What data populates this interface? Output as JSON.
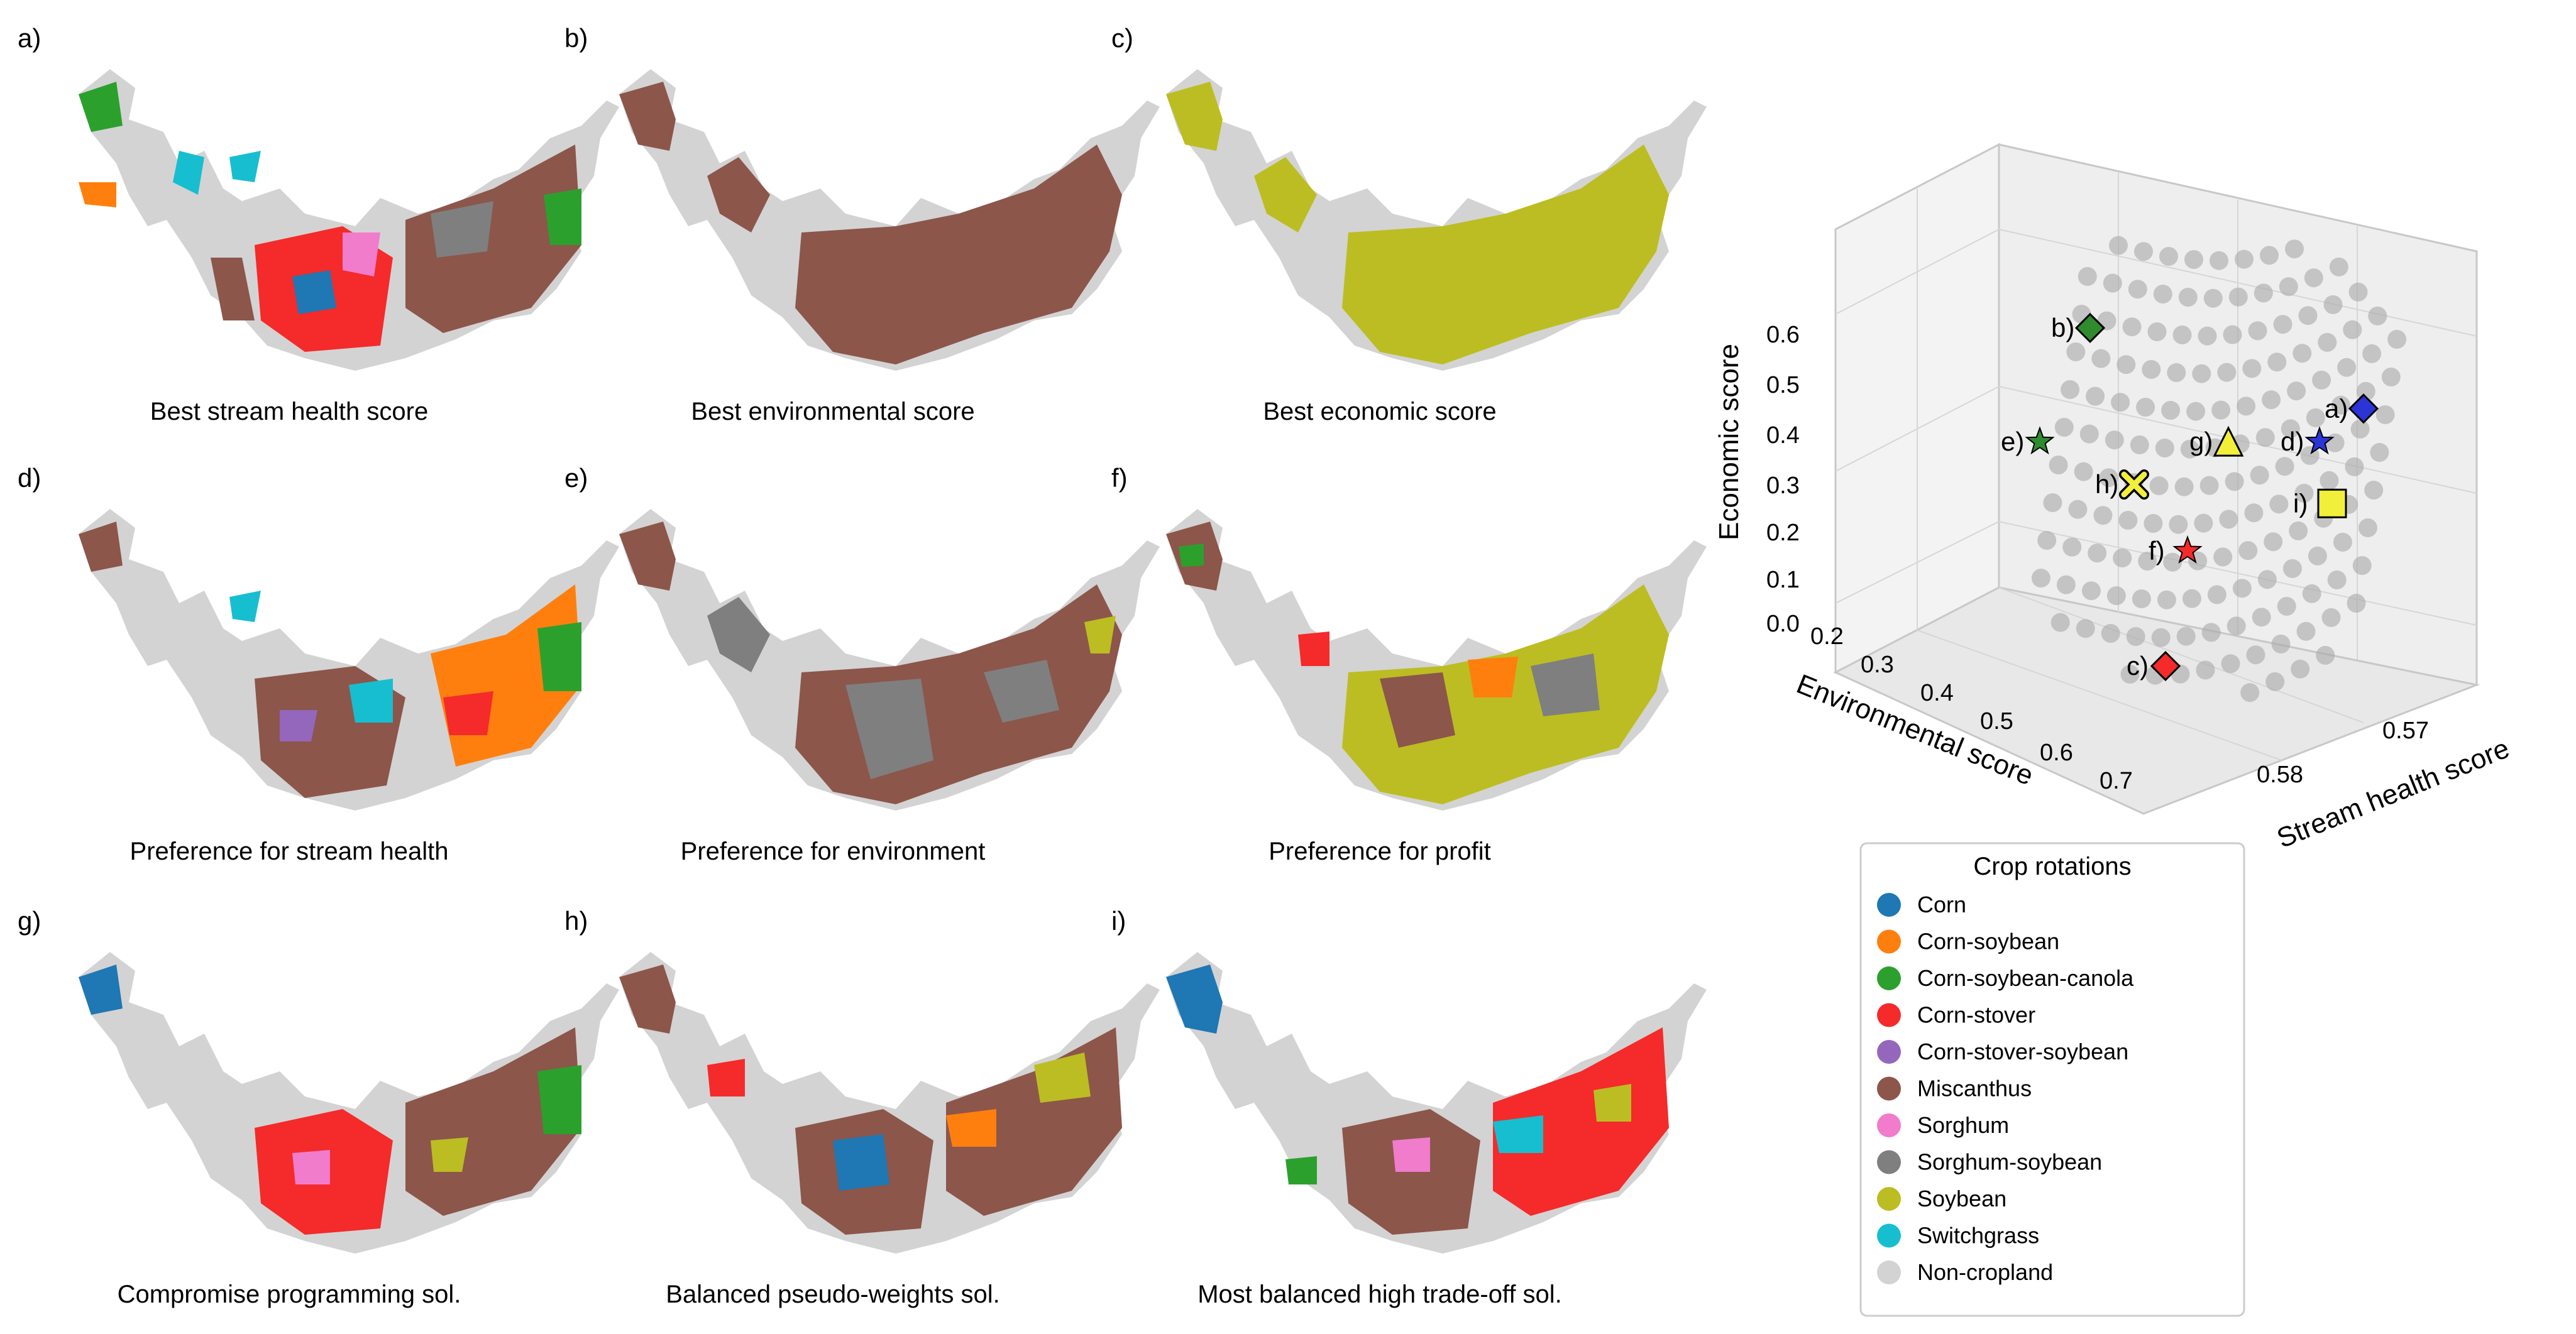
{
  "panels": [
    {
      "letter": "a)",
      "caption": "Best stream health score"
    },
    {
      "letter": "b)",
      "caption": "Best environmental score"
    },
    {
      "letter": "c)",
      "caption": "Best economic score"
    },
    {
      "letter": "d)",
      "caption": "Preference for stream health"
    },
    {
      "letter": "e)",
      "caption": "Preference for environment"
    },
    {
      "letter": "f)",
      "caption": "Preference for profit"
    },
    {
      "letter": "g)",
      "caption": "Compromise programming sol."
    },
    {
      "letter": "h)",
      "caption": "Balanced pseudo-weights sol."
    },
    {
      "letter": "i)",
      "caption": "Most balanced high trade-off sol."
    }
  ],
  "legend": {
    "title": "Crop rotations",
    "items": [
      {
        "label": "Corn",
        "color": "#1f77b4"
      },
      {
        "label": "Corn-soybean",
        "color": "#ff7f0e"
      },
      {
        "label": "Corn-soybean-canola",
        "color": "#2ca02c"
      },
      {
        "label": "Corn-stover",
        "color": "#f52a2a"
      },
      {
        "label": "Corn-stover-soybean",
        "color": "#9467bd"
      },
      {
        "label": "Miscanthus",
        "color": "#8c564b"
      },
      {
        "label": "Sorghum",
        "color": "#f07ccb"
      },
      {
        "label": "Sorghum-soybean",
        "color": "#7f7f7f"
      },
      {
        "label": "Soybean",
        "color": "#bcbd22"
      },
      {
        "label": "Switchgrass",
        "color": "#17becf"
      },
      {
        "label": "Non-cropland",
        "color": "#d3d3d3"
      }
    ]
  },
  "chart_data": {
    "type": "scatter",
    "zlabel": "Economic score",
    "xlabel": "Environmental score",
    "ylabel": "Stream health score",
    "z_ticks": [
      "0.0",
      "0.1",
      "0.2",
      "0.3",
      "0.4",
      "0.5",
      "0.6"
    ],
    "x_ticks": [
      "0.2",
      "0.3",
      "0.4",
      "0.5",
      "0.6",
      "0.7"
    ],
    "y_ticks": [
      "0.58",
      "0.57"
    ],
    "background_points": "grey cloud of approx. 200 Pareto-front solutions",
    "highlighted": [
      {
        "label": "a)",
        "marker": "diamond",
        "color": "#2b35d6",
        "economic": 0.45
      },
      {
        "label": "b)",
        "marker": "diamond",
        "color": "#2e8b2e",
        "economic": 0.62
      },
      {
        "label": "c)",
        "marker": "diamond",
        "color": "#f52a2a",
        "economic": 0.0
      },
      {
        "label": "d)",
        "marker": "star",
        "color": "#2b35d6",
        "economic": 0.38
      },
      {
        "label": "e)",
        "marker": "star",
        "color": "#2e8b2e",
        "economic": 0.38
      },
      {
        "label": "f)",
        "marker": "star",
        "color": "#f52a2a",
        "economic": 0.15
      },
      {
        "label": "g)",
        "marker": "triangle",
        "color": "#f2ef3a",
        "economic": 0.38
      },
      {
        "label": "h)",
        "marker": "x",
        "color": "#f2ef3a",
        "economic": 0.29
      },
      {
        "label": "i)",
        "marker": "square",
        "color": "#f2ef3a",
        "economic": 0.25
      }
    ]
  }
}
